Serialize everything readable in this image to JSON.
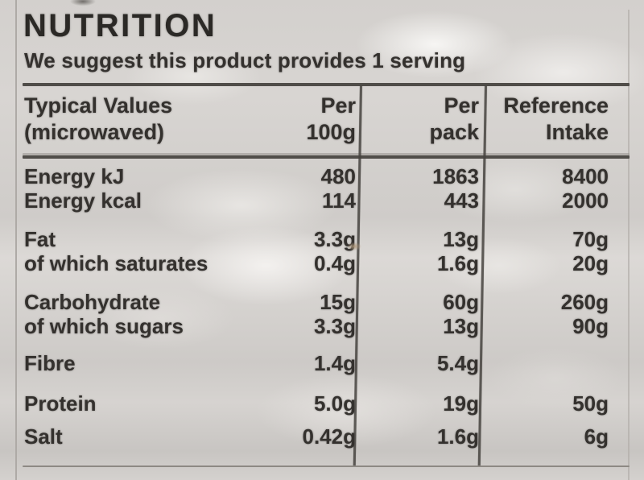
{
  "colors": {
    "background": "#d4d1ce",
    "text": "#34312e",
    "rule_dark": "#504d49",
    "rule_light": "#8d8984"
  },
  "title": "NUTRITION",
  "subtitle": "We suggest this product provides 1 serving",
  "table": {
    "header": {
      "col1_line1": "Typical Values",
      "col1_line2": "(microwaved)",
      "col2_line1": "Per",
      "col2_line2": "100g",
      "col3_line1": "Per",
      "col3_line2": "pack",
      "col4_line1": "Reference",
      "col4_line2": "Intake"
    },
    "rows": [
      {
        "label": "Energy kJ",
        "per_100g": "480",
        "per_pack": "1863",
        "reference_intake": "8400"
      },
      {
        "label": "Energy kcal",
        "per_100g": "114",
        "per_pack": "443",
        "reference_intake": "2000"
      },
      {
        "label": "Fat",
        "per_100g": "3.3g",
        "per_pack": "13g",
        "reference_intake": "70g"
      },
      {
        "label": "of which saturates",
        "per_100g": "0.4g",
        "per_pack": "1.6g",
        "reference_intake": "20g"
      },
      {
        "label": "Carbohydrate",
        "per_100g": "15g",
        "per_pack": "60g",
        "reference_intake": "260g"
      },
      {
        "label": "of which sugars",
        "per_100g": "3.3g",
        "per_pack": "13g",
        "reference_intake": "90g"
      },
      {
        "label": "Fibre",
        "per_100g": "1.4g",
        "per_pack": "5.4g",
        "reference_intake": ""
      },
      {
        "label": "Protein",
        "per_100g": "5.0g",
        "per_pack": "19g",
        "reference_intake": "50g"
      },
      {
        "label": "Salt",
        "per_100g": "0.42g",
        "per_pack": "1.6g",
        "reference_intake": "6g"
      }
    ]
  }
}
